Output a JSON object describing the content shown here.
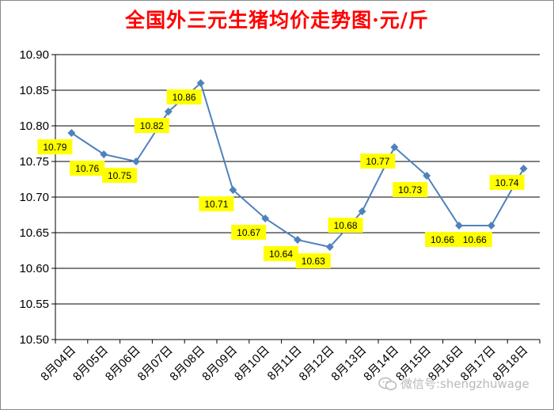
{
  "title": "全国外三元生猪均价走势图·元/斤",
  "watermark": "微信号:shengzhuwage",
  "colors": {
    "title": "#ff0000",
    "line": "#4f81bd",
    "label_bg": "#ffff00",
    "grid": "#000000"
  },
  "chart_data": {
    "type": "line",
    "categories": [
      "8月04日",
      "8月05日",
      "8月06日",
      "8月07日",
      "8月08日",
      "8月09日",
      "8月10日",
      "8月11日",
      "8月12日",
      "8月13日",
      "8月14日",
      "8月15日",
      "8月16日",
      "8月17日",
      "8月18日"
    ],
    "series": [
      {
        "values": [
          10.79,
          10.76,
          10.75,
          10.82,
          10.86,
          10.71,
          10.67,
          10.64,
          10.63,
          10.68,
          10.77,
          10.73,
          10.66,
          10.66,
          10.74
        ]
      }
    ],
    "data_labels": [
      "10.79",
      "10.76",
      "10.75",
      "10.82",
      "10.86",
      "10.71",
      "10.67",
      "10.64",
      "10.63",
      "10.68",
      "10.77",
      "10.73",
      "10.66",
      "10.66",
      "10.74"
    ],
    "yticks": [
      "10.50",
      "10.55",
      "10.60",
      "10.65",
      "10.70",
      "10.75",
      "10.80",
      "10.85",
      "10.90"
    ],
    "ylim": [
      10.5,
      10.9
    ],
    "grid": true,
    "legend": "none",
    "xlabel": "",
    "ylabel": ""
  }
}
